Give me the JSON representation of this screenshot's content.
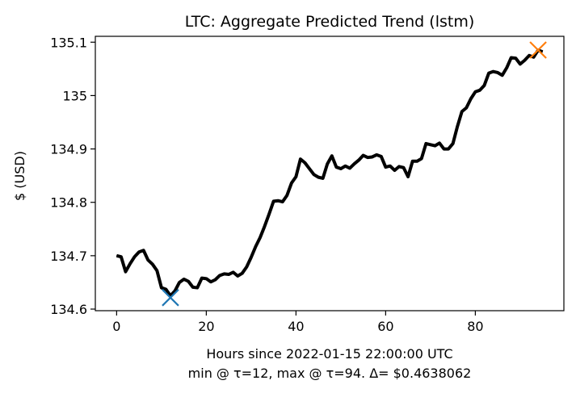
{
  "chart_data": {
    "type": "line",
    "title": "LTC: Aggregate Predicted Trend (lstm)",
    "xlabel": "Hours since 2022-01-15 22:00:00 UTC",
    "xlabel2": "min @ τ=12, max @ τ=94. Δ= $0.4638062",
    "ylabel": "$ (USD)",
    "xlim": [
      -4.75,
      99.75
    ],
    "ylim": [
      134.597,
      135.111
    ],
    "xticks": [
      0,
      20,
      40,
      60,
      80
    ],
    "xtick_labels": [
      "0",
      "20",
      "40",
      "60",
      "80"
    ],
    "yticks": [
      134.6,
      134.7,
      134.8,
      134.9,
      135.0,
      135.1
    ],
    "ytick_labels": [
      "134.6",
      "134.7",
      "134.8",
      "134.9",
      "135",
      "135.1"
    ],
    "grid": false,
    "series": [
      {
        "color": "#000000",
        "x": [
          0,
          1,
          2,
          3,
          4,
          5,
          6,
          7,
          8,
          9,
          10,
          11,
          12,
          13,
          14,
          15,
          16,
          17,
          18,
          19,
          20,
          21,
          22,
          23,
          24,
          25,
          26,
          27,
          28,
          29,
          30,
          31,
          32,
          33,
          34,
          35,
          36,
          37,
          38,
          39,
          40,
          41,
          42,
          43,
          44,
          45,
          46,
          47,
          48,
          49,
          50,
          51,
          52,
          53,
          54,
          55,
          56,
          57,
          58,
          59,
          60,
          61,
          62,
          63,
          64,
          65,
          66,
          67,
          68,
          69,
          70,
          71,
          72,
          73,
          74,
          75,
          76,
          77,
          78,
          79,
          80,
          81,
          82,
          83,
          84,
          85,
          86,
          87,
          88,
          89,
          90,
          91,
          92,
          93,
          94,
          95
        ],
        "y": [
          134.7,
          134.698,
          134.67,
          134.685,
          134.698,
          134.707,
          134.71,
          134.692,
          134.684,
          134.672,
          134.64,
          134.637,
          134.625,
          134.634,
          134.65,
          134.656,
          134.652,
          134.641,
          134.64,
          134.658,
          134.657,
          134.651,
          134.655,
          134.663,
          134.666,
          134.665,
          134.669,
          134.662,
          134.667,
          134.679,
          134.697,
          134.717,
          134.734,
          134.755,
          134.778,
          134.802,
          134.803,
          134.801,
          134.813,
          134.836,
          134.848,
          134.881,
          134.874,
          134.863,
          134.852,
          134.847,
          134.845,
          134.872,
          134.887,
          134.866,
          134.863,
          134.868,
          134.864,
          134.872,
          134.879,
          134.888,
          134.884,
          134.885,
          134.889,
          134.886,
          134.866,
          134.868,
          134.86,
          134.867,
          134.865,
          134.848,
          134.877,
          134.877,
          134.882,
          134.91,
          134.908,
          134.906,
          134.911,
          134.9,
          134.9,
          134.91,
          134.942,
          134.97,
          134.977,
          134.994,
          135.007,
          135.01,
          135.019,
          135.042,
          135.045,
          135.043,
          135.038,
          135.052,
          135.071,
          135.07,
          135.059,
          135.066,
          135.075,
          135.072,
          135.085,
          135.082
        ]
      }
    ],
    "markers": [
      {
        "label": "min",
        "x": 12,
        "y": 134.6215,
        "color": "#1f77b4",
        "symbol": "x"
      },
      {
        "label": "max",
        "x": 94,
        "y": 135.0853,
        "color": "#ff7f0e",
        "symbol": "x"
      }
    ]
  }
}
